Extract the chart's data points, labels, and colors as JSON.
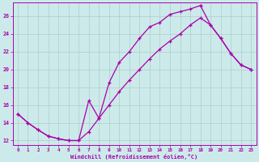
{
  "xlabel": "Windchill (Refroidissement éolien,°C)",
  "xlim": [
    -0.5,
    23.5
  ],
  "ylim": [
    11.5,
    27.5
  ],
  "xticks": [
    0,
    1,
    2,
    3,
    4,
    5,
    6,
    7,
    8,
    9,
    10,
    11,
    12,
    13,
    14,
    15,
    16,
    17,
    18,
    19,
    20,
    21,
    22,
    23
  ],
  "yticks": [
    12,
    14,
    16,
    18,
    20,
    22,
    24,
    26
  ],
  "bg_color": "#cceaea",
  "line_color": "#aa00aa",
  "grid_color": "#b0cccc",
  "path1_x": [
    0,
    1,
    2,
    3,
    4,
    5,
    6,
    7,
    8,
    9,
    10,
    11,
    12,
    13,
    14,
    15,
    16,
    17,
    18
  ],
  "path1_y": [
    15.0,
    14.0,
    13.2,
    12.5,
    12.2,
    12.0,
    12.0,
    16.5,
    14.5,
    18.5,
    20.8,
    22.0,
    23.5,
    24.8,
    25.3,
    26.2,
    26.5,
    26.8,
    27.2
  ],
  "path2_x": [
    0,
    1,
    2,
    3,
    4,
    5,
    6,
    7,
    8,
    9,
    10,
    11,
    12,
    13,
    14,
    15,
    16,
    17,
    18,
    19,
    20,
    21,
    22,
    23
  ],
  "path2_y": [
    15.0,
    14.0,
    13.2,
    12.5,
    12.2,
    12.0,
    12.0,
    13.0,
    14.5,
    16.0,
    17.5,
    18.8,
    20.0,
    21.2,
    22.3,
    23.2,
    24.0,
    25.0,
    25.8,
    25.0,
    23.5,
    21.8,
    20.5,
    20.0
  ],
  "path3_x": [
    18,
    19,
    20,
    21,
    22,
    23
  ],
  "path3_y": [
    27.2,
    25.0,
    23.5,
    21.8,
    20.5,
    20.0
  ]
}
